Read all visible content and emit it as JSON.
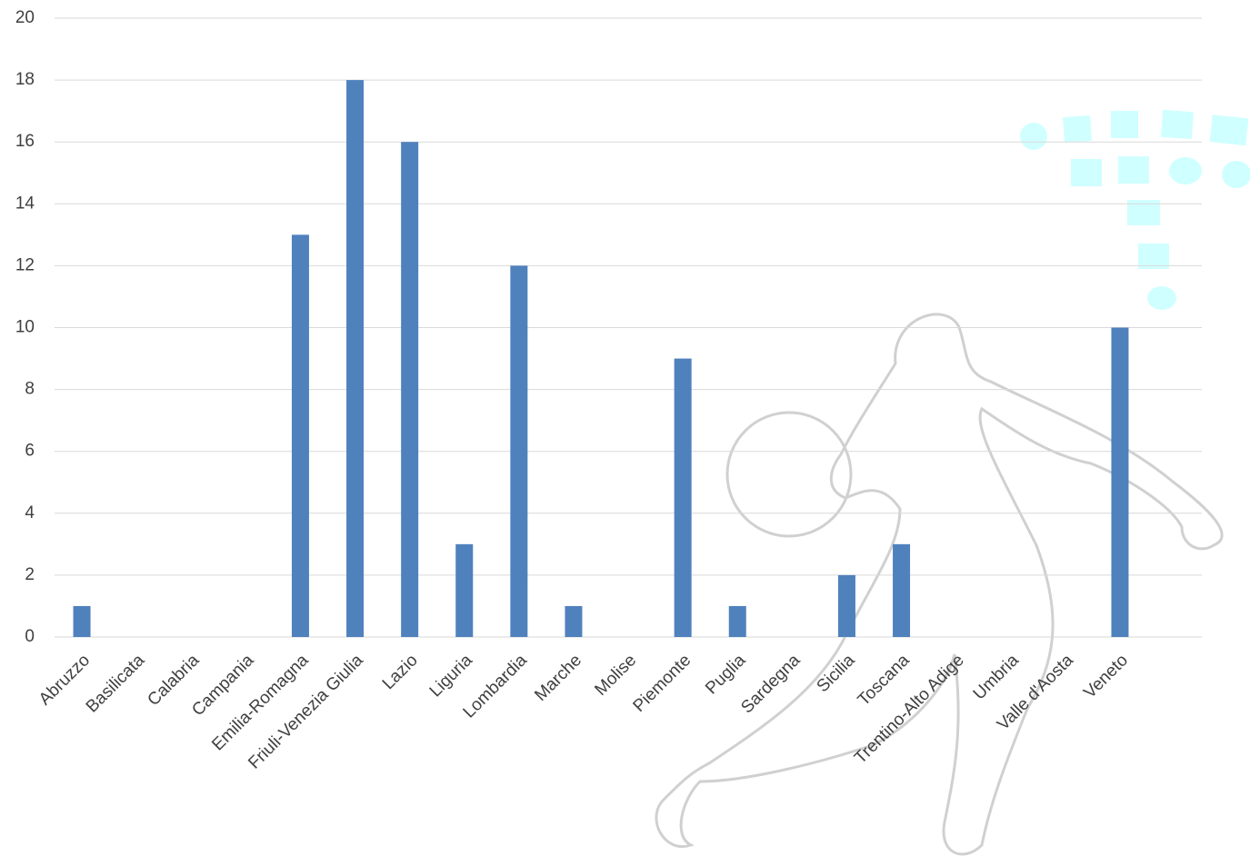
{
  "chart_data": {
    "type": "bar",
    "categories": [
      "Abruzzo",
      "Basilicata",
      "Calabria",
      "Campania",
      "Emilia-Romagna",
      "Friuli-Venezia Giulia",
      "Lazio",
      "Liguria",
      "Lombardia",
      "Marche",
      "Molise",
      "Piemonte",
      "Puglia",
      "Sardegna",
      "Sicilia",
      "Toscana",
      "Trentino-Alto Adige",
      "Umbria",
      "Valle d'Aosta",
      "Veneto"
    ],
    "values": [
      1,
      0,
      0,
      0,
      13,
      18,
      16,
      3,
      12,
      1,
      0,
      9,
      1,
      0,
      2,
      3,
      0,
      0,
      0,
      10
    ],
    "color": "#4f81bd",
    "ylim": [
      0,
      20
    ],
    "yticks": [
      0,
      2,
      4,
      6,
      8,
      10,
      12,
      14,
      16,
      18,
      20
    ],
    "grid": true
  }
}
